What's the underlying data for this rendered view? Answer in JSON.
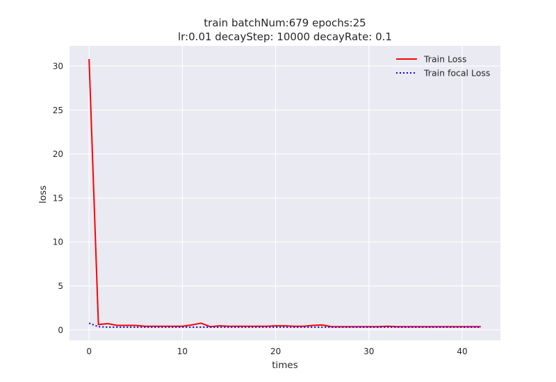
{
  "chart_data": {
    "type": "line",
    "title": "train batchNum:679 epochs:25",
    "subtitle": "lr:0.01  decayStep: 10000  decayRate: 0.1",
    "xlabel": "times",
    "ylabel": "loss",
    "xlim": [
      -2.1,
      44.1
    ],
    "ylim": [
      -1.2,
      32.3
    ],
    "xticks": [
      0,
      10,
      20,
      30,
      40
    ],
    "yticks": [
      0,
      5,
      10,
      15,
      20,
      25,
      30
    ],
    "grid": true,
    "legend_position": "top-right",
    "x": [
      0,
      1,
      2,
      3,
      4,
      5,
      6,
      7,
      8,
      9,
      10,
      11,
      12,
      13,
      14,
      15,
      16,
      17,
      18,
      19,
      20,
      21,
      22,
      23,
      24,
      25,
      26,
      27,
      28,
      29,
      30,
      31,
      32,
      33,
      34,
      35,
      36,
      37,
      38,
      39,
      40,
      41,
      42
    ],
    "series": [
      {
        "name": "Train Loss",
        "color": "#ff0000",
        "style": "solid",
        "values": [
          30.8,
          0.6,
          0.7,
          0.5,
          0.5,
          0.5,
          0.4,
          0.4,
          0.4,
          0.4,
          0.4,
          0.55,
          0.75,
          0.35,
          0.45,
          0.4,
          0.4,
          0.4,
          0.4,
          0.4,
          0.45,
          0.45,
          0.4,
          0.4,
          0.5,
          0.55,
          0.35,
          0.35,
          0.35,
          0.35,
          0.35,
          0.35,
          0.4,
          0.35,
          0.35,
          0.35,
          0.35,
          0.35,
          0.35,
          0.35,
          0.35,
          0.35,
          0.35
        ]
      },
      {
        "name": "Train focal Loss",
        "color": "#0000ff",
        "style": "dotted",
        "values": [
          0.75,
          0.35,
          0.3,
          0.3,
          0.3,
          0.3,
          0.3,
          0.3,
          0.3,
          0.3,
          0.3,
          0.3,
          0.3,
          0.3,
          0.3,
          0.3,
          0.3,
          0.3,
          0.3,
          0.3,
          0.3,
          0.3,
          0.3,
          0.3,
          0.3,
          0.3,
          0.3,
          0.3,
          0.3,
          0.3,
          0.3,
          0.3,
          0.3,
          0.3,
          0.3,
          0.3,
          0.3,
          0.3,
          0.3,
          0.3,
          0.3,
          0.3,
          0.3
        ]
      }
    ]
  },
  "colors": {
    "plot_background": "#eaeaf2",
    "grid": "#ffffff",
    "text": "#262626"
  }
}
